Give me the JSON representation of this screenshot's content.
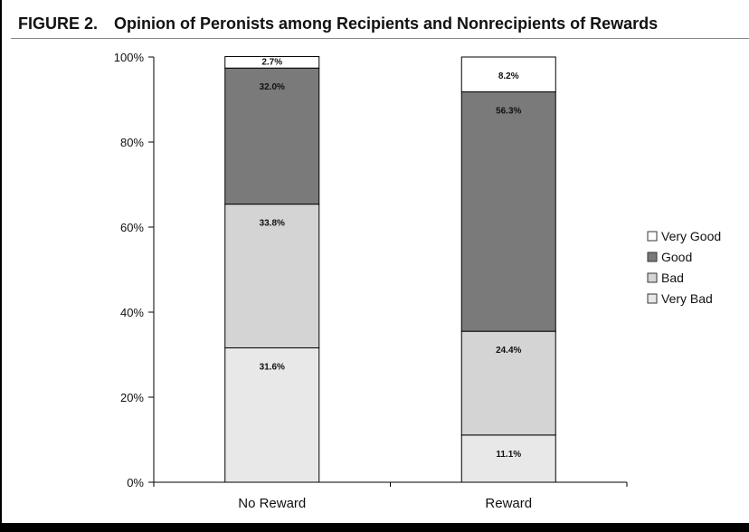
{
  "figure": {
    "label": "FIGURE 2.",
    "title": "Opinion of Peronists among Recipients and Nonrecipients of Rewards"
  },
  "chart_data": {
    "type": "bar",
    "stacked": true,
    "title": "Opinion of Peronists among Recipients and Nonrecipients of Rewards",
    "categories": [
      "No Reward",
      "Reward"
    ],
    "series": [
      {
        "name": "Very Bad",
        "values": [
          31.6,
          11.1
        ],
        "labels": [
          "31.6%",
          "11.1%"
        ],
        "color": "#e8e8e8"
      },
      {
        "name": "Bad",
        "values": [
          33.8,
          24.4
        ],
        "labels": [
          "33.8%",
          "24.4%"
        ],
        "color": "#d4d4d4"
      },
      {
        "name": "Good",
        "values": [
          32.0,
          56.3
        ],
        "labels": [
          "32.0%",
          "56.3%"
        ],
        "color": "#7a7a7a"
      },
      {
        "name": "Very Good",
        "values": [
          2.7,
          8.2
        ],
        "labels": [
          "2.7%",
          "8.2%"
        ],
        "color": "#ffffff"
      }
    ],
    "legend": [
      "Very Good",
      "Good",
      "Bad",
      "Very Bad"
    ],
    "legend_position": "right",
    "ylim": [
      0,
      100
    ],
    "yticks": [
      "0%",
      "20%",
      "40%",
      "60%",
      "80%",
      "100%"
    ],
    "xlabel": "",
    "ylabel": ""
  }
}
